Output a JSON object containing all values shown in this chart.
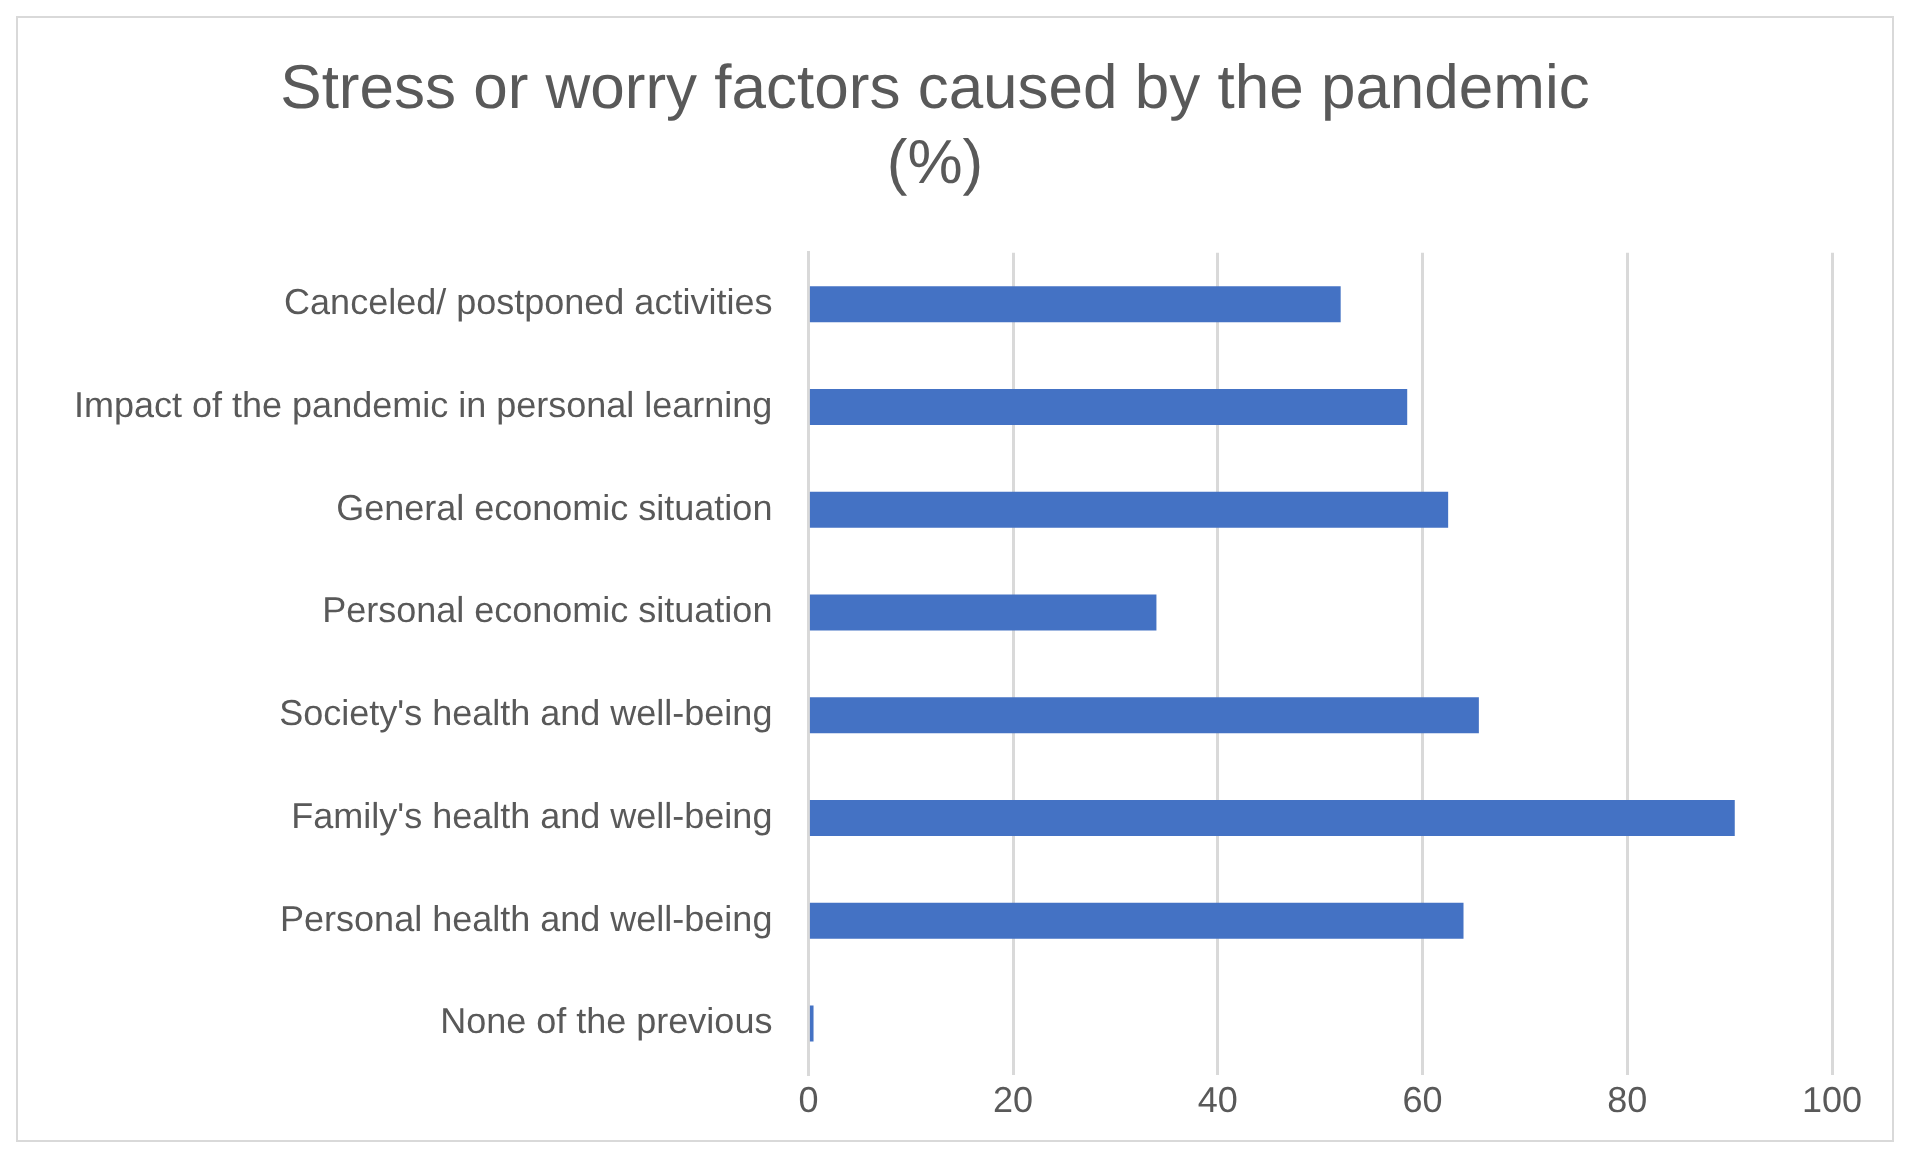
{
  "chart_data": {
    "type": "bar",
    "orientation": "horizontal",
    "title": [
      "Stress or worry factors caused by the pandemic",
      "(%)"
    ],
    "categories": [
      "Canceled/ postponed activities",
      "Impact of the pandemic in personal learning",
      "General economic situation",
      "Personal economic situation",
      "Society's health and well-being",
      "Family's health and well-being",
      "Personal health and well-being",
      "None of the previous"
    ],
    "values": [
      52,
      58.5,
      62.5,
      34,
      65.5,
      90.5,
      64,
      0.5
    ],
    "color": "#4472c4",
    "xlim": [
      0,
      100
    ],
    "xticks": [
      0,
      20,
      40,
      60,
      80,
      100
    ],
    "grid": "x",
    "legend": false
  }
}
